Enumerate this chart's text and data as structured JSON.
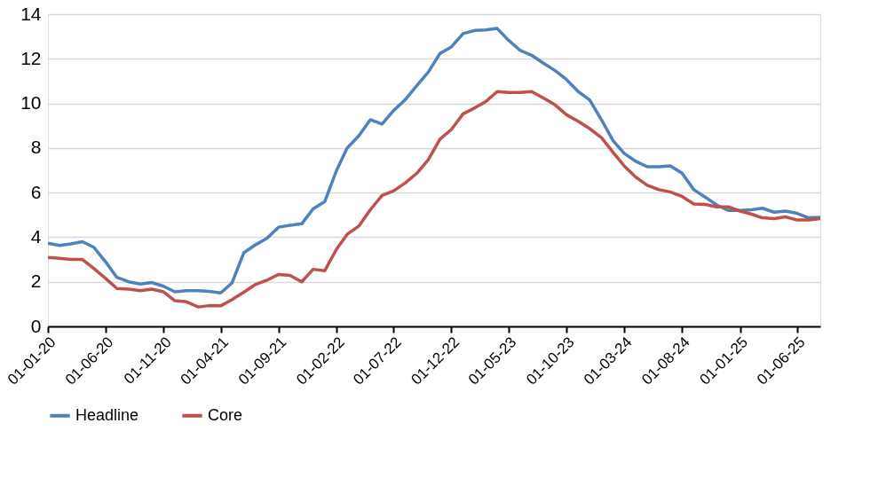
{
  "chart_data": {
    "type": "line",
    "x": [
      "2020-01-01",
      "2020-02-01",
      "2020-03-01",
      "2020-04-01",
      "2020-05-01",
      "2020-06-01",
      "2020-07-01",
      "2020-08-01",
      "2020-09-01",
      "2020-10-01",
      "2020-11-01",
      "2020-12-01",
      "2021-01-01",
      "2021-02-01",
      "2021-03-01",
      "2021-04-01",
      "2021-05-01",
      "2021-06-01",
      "2021-07-01",
      "2021-08-01",
      "2021-09-01",
      "2021-10-01",
      "2021-11-01",
      "2021-12-01",
      "2022-01-01",
      "2022-02-01",
      "2022-03-01",
      "2022-04-01",
      "2022-05-01",
      "2022-06-01",
      "2022-07-01",
      "2022-08-01",
      "2022-09-01",
      "2022-10-01",
      "2022-11-01",
      "2022-12-01",
      "2023-01-01",
      "2023-02-01",
      "2023-03-01",
      "2023-04-01",
      "2023-05-01",
      "2023-06-01",
      "2023-07-01",
      "2023-08-01",
      "2023-09-01",
      "2023-10-01",
      "2023-11-01",
      "2023-12-01",
      "2024-01-01",
      "2024-02-01",
      "2024-03-01",
      "2024-04-01",
      "2024-05-01",
      "2024-06-01",
      "2024-07-01",
      "2024-08-01",
      "2024-09-01",
      "2024-10-01",
      "2024-11-01",
      "2024-12-01",
      "2025-01-01",
      "2025-02-01",
      "2025-03-01",
      "2025-04-01",
      "2025-05-01",
      "2025-06-01",
      "2025-07-01",
      "2025-08-01"
    ],
    "series": [
      {
        "name": "Headline",
        "color": "#4f81bd",
        "values": [
          3.73,
          3.63,
          3.7,
          3.8,
          3.55,
          2.9,
          2.2,
          2.0,
          1.9,
          1.97,
          1.8,
          1.55,
          1.6,
          1.6,
          1.57,
          1.5,
          1.95,
          3.3,
          3.65,
          3.95,
          4.45,
          4.53,
          4.6,
          5.27,
          5.6,
          7.0,
          8.0,
          8.55,
          9.27,
          9.07,
          9.67,
          10.16,
          10.8,
          11.4,
          12.24,
          12.53,
          13.13,
          13.27,
          13.29,
          13.36,
          12.83,
          12.37,
          12.16,
          11.8,
          11.47,
          11.07,
          10.53,
          10.16,
          9.27,
          8.33,
          7.76,
          7.4,
          7.16,
          7.16,
          7.2,
          6.87,
          6.13,
          5.8,
          5.44,
          5.2,
          5.2,
          5.23,
          5.3,
          5.12,
          5.17,
          5.07,
          4.87,
          4.89
        ]
      },
      {
        "name": "Core",
        "color": "#c0504d",
        "values": [
          3.09,
          3.05,
          3.0,
          3.0,
          2.6,
          2.15,
          1.7,
          1.67,
          1.6,
          1.67,
          1.55,
          1.15,
          1.1,
          0.87,
          0.93,
          0.92,
          1.2,
          1.53,
          1.87,
          2.07,
          2.33,
          2.29,
          2.0,
          2.56,
          2.5,
          3.47,
          4.13,
          4.5,
          5.23,
          5.87,
          6.07,
          6.43,
          6.87,
          7.47,
          8.4,
          8.83,
          9.53,
          9.8,
          10.07,
          10.53,
          10.49,
          10.49,
          10.53,
          10.24,
          9.93,
          9.49,
          9.2,
          8.87,
          8.47,
          7.8,
          7.2,
          6.69,
          6.33,
          6.13,
          6.03,
          5.83,
          5.49,
          5.47,
          5.36,
          5.36,
          5.17,
          5.03,
          4.87,
          4.83,
          4.91,
          4.77,
          4.77,
          4.83
        ]
      }
    ],
    "xlim": [
      "2020-01-01",
      "2025-08-01"
    ],
    "xticks": [
      {
        "value": "2020-01-01",
        "label": "01-01-20"
      },
      {
        "value": "2020-06-01",
        "label": "01-06-20"
      },
      {
        "value": "2020-11-01",
        "label": "01-11-20"
      },
      {
        "value": "2021-04-01",
        "label": "01-04-21"
      },
      {
        "value": "2021-09-01",
        "label": "01-09-21"
      },
      {
        "value": "2022-02-01",
        "label": "01-02-22"
      },
      {
        "value": "2022-07-01",
        "label": "01-07-22"
      },
      {
        "value": "2022-12-01",
        "label": "01-12-22"
      },
      {
        "value": "2023-05-01",
        "label": "01-05-23"
      },
      {
        "value": "2023-10-01",
        "label": "01-10-23"
      },
      {
        "value": "2024-03-01",
        "label": "01-03-24"
      },
      {
        "value": "2024-08-01",
        "label": "01-08-24"
      },
      {
        "value": "2025-01-01",
        "label": "01-01-25"
      },
      {
        "value": "2025-06-01",
        "label": "01-06-25"
      }
    ],
    "ylim": [
      0,
      14
    ],
    "yticks": [
      0,
      2,
      4,
      6,
      8,
      10,
      12,
      14
    ],
    "grid": "y",
    "legend": "bottom",
    "marker": "none",
    "line_style": "solid"
  }
}
